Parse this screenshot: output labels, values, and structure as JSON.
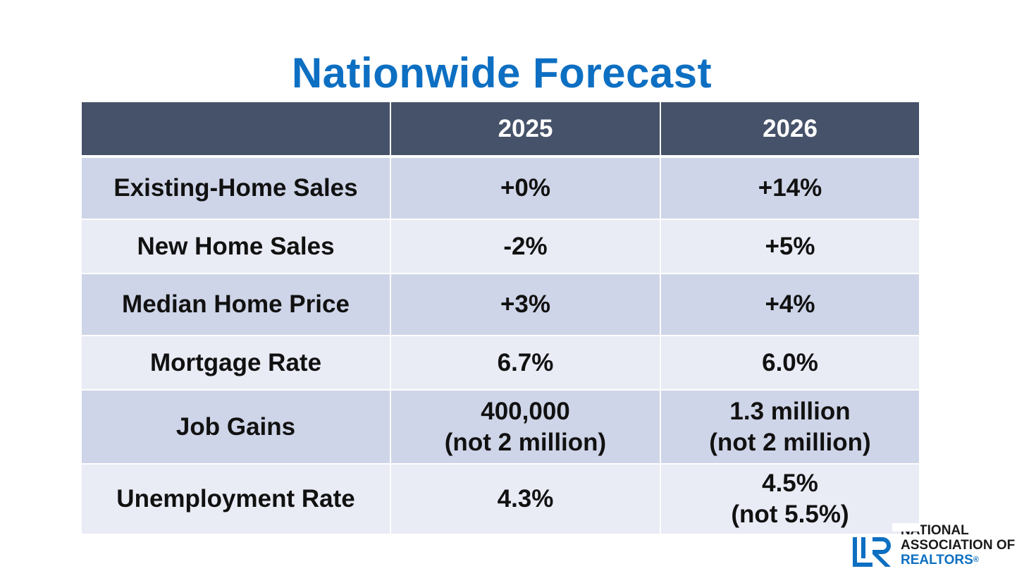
{
  "title": "Nationwide Forecast",
  "table": {
    "headers": [
      "",
      "2025",
      "2026"
    ],
    "rows": [
      {
        "label": "Existing-Home Sales",
        "y2025": [
          "+0%"
        ],
        "y2026": [
          "+14%"
        ]
      },
      {
        "label": "New Home Sales",
        "y2025": [
          "-2%"
        ],
        "y2026": [
          "+5%"
        ]
      },
      {
        "label": "Median Home Price",
        "y2025": [
          "+3%"
        ],
        "y2026": [
          "+4%"
        ]
      },
      {
        "label": "Mortgage Rate",
        "y2025": [
          "6.7%"
        ],
        "y2026": [
          "6.0%"
        ]
      },
      {
        "label": "Job Gains",
        "y2025": [
          "400,000",
          "(not 2 million)"
        ],
        "y2026": [
          "1.3 million",
          "(not 2 million)"
        ]
      },
      {
        "label": "Unemployment Rate",
        "y2025": [
          "4.3%"
        ],
        "y2026": [
          "4.5%",
          "(not 5.5%)"
        ]
      }
    ]
  },
  "logo": {
    "line1": "NATIONAL",
    "line2": "ASSOCIATION OF",
    "line3": "REALTORS",
    "registered": "®",
    "icon": "realtor-r-logo-icon",
    "mark_color": "#0d6fc2"
  },
  "colors": {
    "title": "#0d6fc2",
    "header_bg": "#465269",
    "row_dark": "#cfd5e8",
    "row_light": "#e9ebf5"
  }
}
